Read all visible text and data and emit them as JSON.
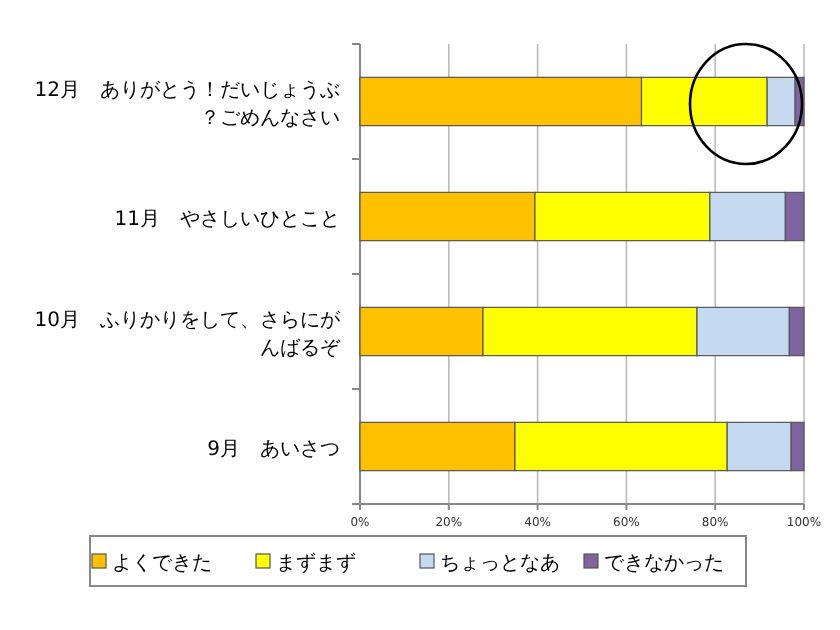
{
  "chart_data": {
    "type": "bar",
    "orientation": "horizontal",
    "stacked": true,
    "categories": [
      "12月　ありがとう！だいじょうぶ？ごめんなさい",
      "11月　やさしいひとこと",
      "10月　ふりかりをして、さらにがんばるぞ",
      "9月　あいさつ"
    ],
    "series": [
      {
        "name": "よくできた",
        "color": "#ffc000",
        "values": [
          63.4,
          39.4,
          27.7,
          34.9
        ]
      },
      {
        "name": "まずまず",
        "color": "#ffff00",
        "values": [
          28.3,
          39.4,
          48.2,
          47.8
        ]
      },
      {
        "name": "ちょっとなあ",
        "color": "#c5d9f1",
        "values": [
          6.3,
          17.0,
          20.8,
          14.4
        ]
      },
      {
        "name": "できなかった",
        "color": "#8064a2",
        "values": [
          2.0,
          4.2,
          3.3,
          2.9
        ]
      }
    ],
    "xlim": [
      0,
      100
    ],
    "xticks": [
      {
        "value": 0,
        "label": "0%"
      },
      {
        "value": 20,
        "label": "20%"
      },
      {
        "value": 40,
        "label": "40%"
      },
      {
        "value": 60,
        "label": "60%"
      },
      {
        "value": 80,
        "label": "80%"
      },
      {
        "value": 100,
        "label": "100%"
      }
    ],
    "grid": "x",
    "legend": "bottom"
  }
}
